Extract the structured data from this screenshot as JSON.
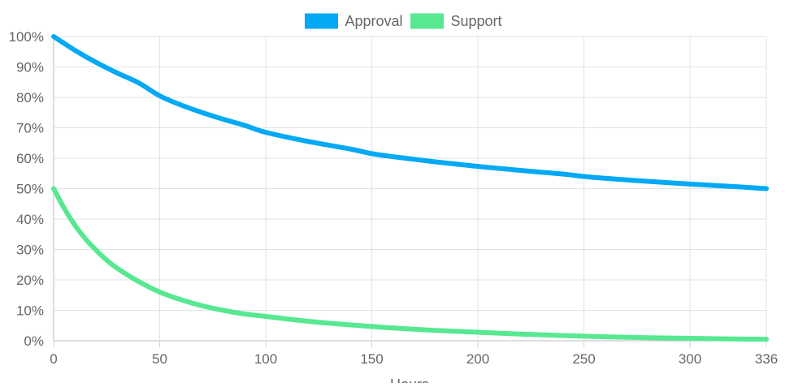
{
  "chart_data": {
    "type": "line",
    "xlabel": "Hours",
    "ylabel": "",
    "title": "",
    "legend_position": "top-center",
    "grid": true,
    "xlim": [
      0,
      336
    ],
    "ylim": [
      0,
      100
    ],
    "x_ticks": [
      0,
      50,
      100,
      150,
      200,
      250,
      300,
      336
    ],
    "y_ticks": [
      0,
      10,
      20,
      30,
      40,
      50,
      60,
      70,
      80,
      90,
      100
    ],
    "y_tick_suffix": "%",
    "series": [
      {
        "name": "Approval",
        "color": "#03a9f4",
        "x": [
          0,
          10,
          20,
          30,
          40,
          50,
          60,
          70,
          80,
          90,
          100,
          120,
          140,
          150,
          160,
          180,
          200,
          220,
          240,
          250,
          260,
          280,
          300,
          320,
          336
        ],
        "values": [
          100,
          95.5,
          91.5,
          88,
          84.8,
          80.5,
          77.5,
          75,
          72.8,
          70.8,
          68.5,
          65.5,
          63,
          61.5,
          60.5,
          58.8,
          57.3,
          56,
          54.8,
          54,
          53.4,
          52.4,
          51.5,
          50.7,
          50
        ]
      },
      {
        "name": "Support",
        "color": "#57e891",
        "x": [
          0,
          5,
          10,
          15,
          20,
          25,
          30,
          40,
          50,
          60,
          70,
          80,
          90,
          100,
          120,
          140,
          150,
          160,
          180,
          200,
          220,
          250,
          280,
          300,
          320,
          336
        ],
        "values": [
          50,
          43.5,
          38,
          33.5,
          29.8,
          26.5,
          23.8,
          19.5,
          16,
          13.5,
          11.5,
          10,
          8.8,
          8,
          6.4,
          5.2,
          4.7,
          4.2,
          3.4,
          2.8,
          2.2,
          1.5,
          1,
          0.8,
          0.6,
          0.5
        ]
      }
    ]
  }
}
